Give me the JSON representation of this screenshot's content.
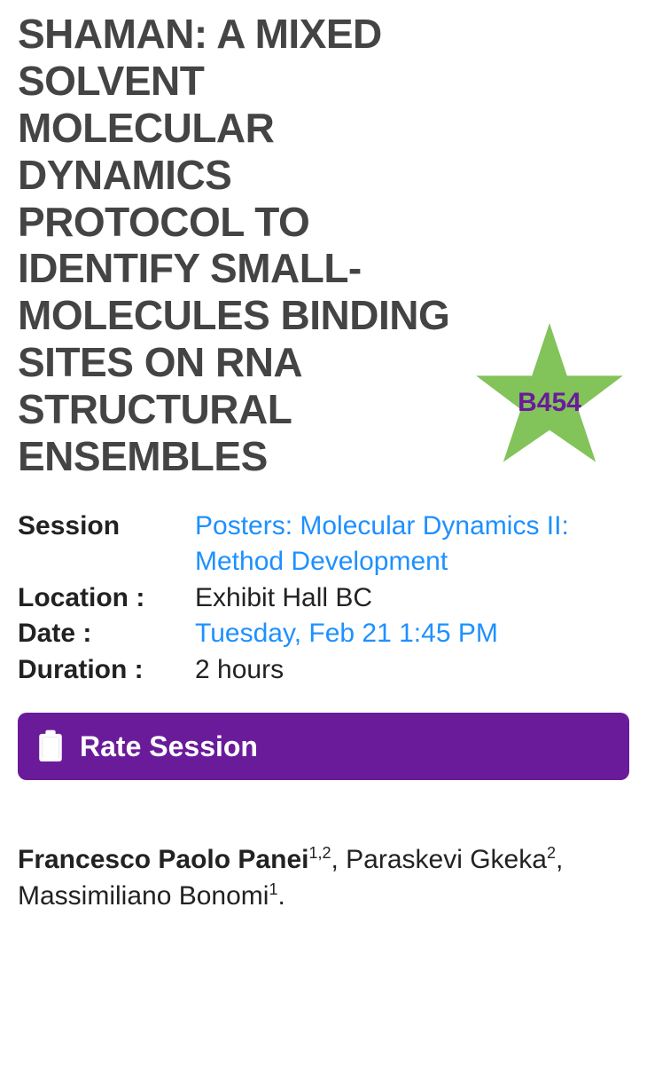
{
  "title": "SHAMAN: A MIXED SOLVENT MOLECULAR DYNAMICS PROTOCOL TO IDENTIFY SMALL-MOLECULES BINDING SITES ON RNA STRUCTURAL ENSEMBLES",
  "badge": {
    "code": "B454",
    "star_fill": "#82c35a",
    "text_color": "#6a1b9a"
  },
  "meta": {
    "session": {
      "label": "Session",
      "value": "Posters: Molecular Dynamics II: Method Development",
      "is_link": true
    },
    "location": {
      "label": "Location :",
      "value": "Exhibit Hall BC",
      "is_link": false
    },
    "date": {
      "label": "Date :",
      "value": "Tuesday, Feb 21 1:45 PM",
      "is_link": true
    },
    "duration": {
      "label": "Duration :",
      "value": "2 hours",
      "is_link": false
    }
  },
  "rate_button": {
    "label": "Rate Session"
  },
  "authors": [
    {
      "name": "Francesco Paolo Panei",
      "affil": "1,2",
      "bold": true
    },
    {
      "name": "Paraskevi Gkeka",
      "affil": "2",
      "bold": false
    },
    {
      "name": "Massimiliano Bonomi",
      "affil": "1",
      "bold": false
    }
  ],
  "colors": {
    "accent_purple": "#6a1b9a",
    "link_blue": "#1e90ff",
    "title_gray": "#444444"
  }
}
